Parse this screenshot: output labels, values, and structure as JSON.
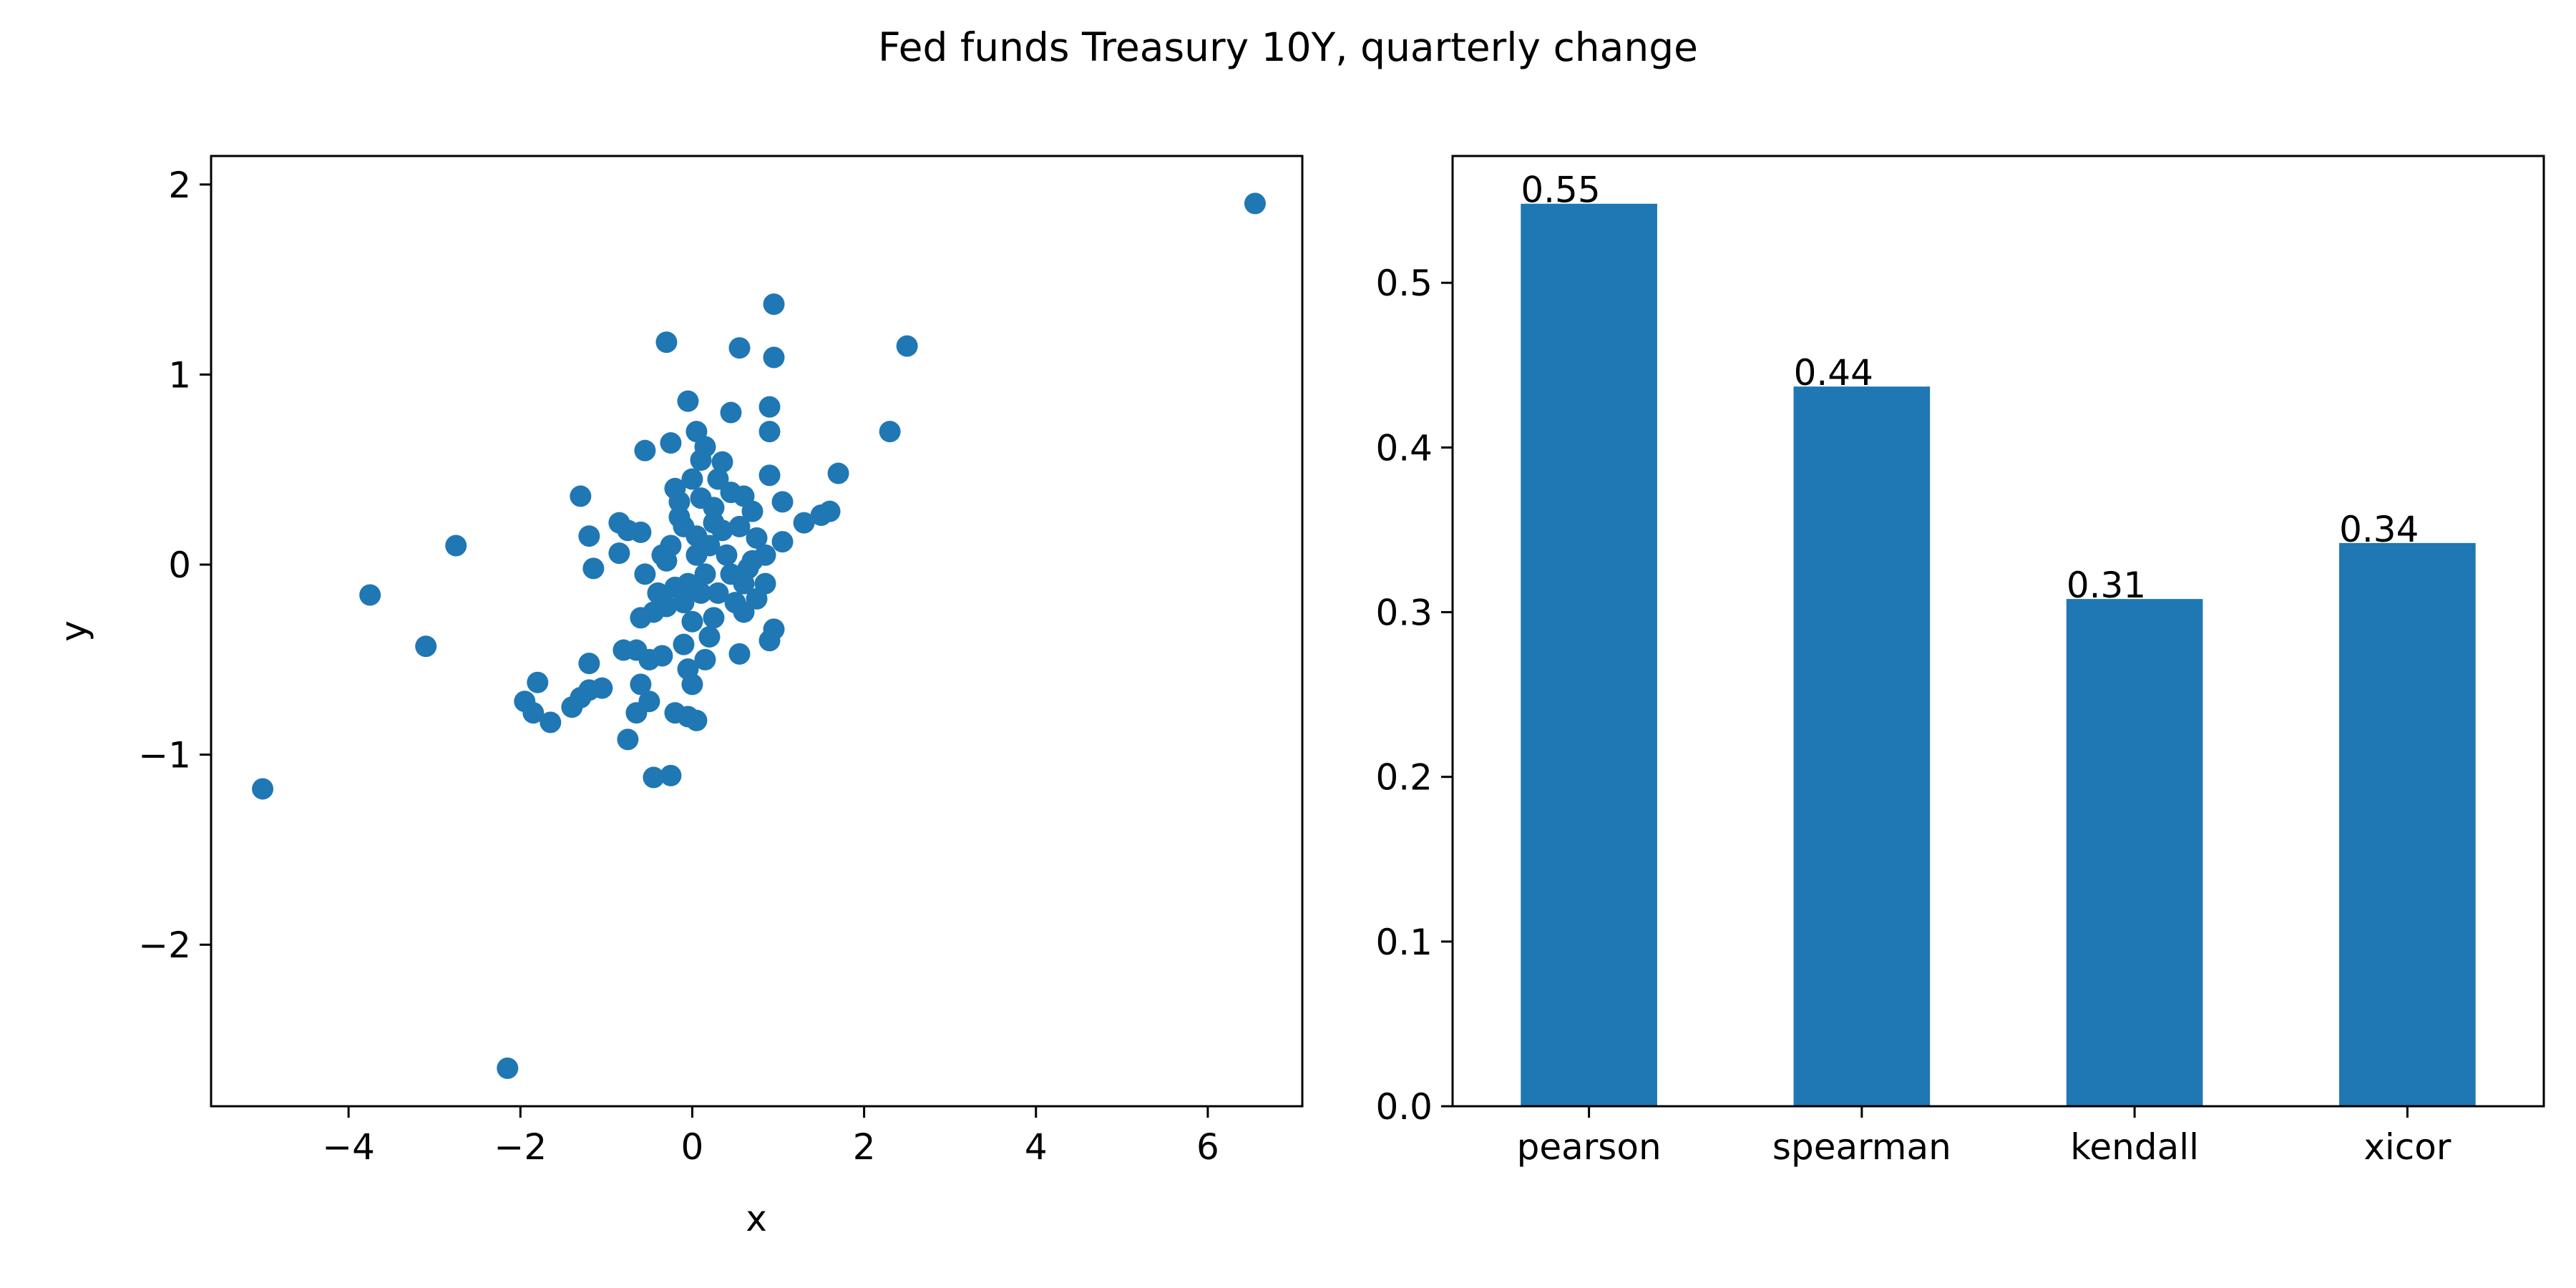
{
  "figure": {
    "title": "Fed funds Treasury 10Y, quarterly change"
  },
  "chart_data": [
    {
      "type": "scatter",
      "title": "",
      "xlabel": "x",
      "ylabel": "y",
      "xlim": [
        -5.6,
        7.1
      ],
      "ylim": [
        -2.85,
        2.15
      ],
      "xticks": [
        -4,
        -2,
        0,
        2,
        4,
        6
      ],
      "yticks": [
        -2,
        -1,
        0,
        1,
        2
      ],
      "grid": false,
      "color": "#1f77b4",
      "points": [
        [
          6.55,
          1.9
        ],
        [
          -5.0,
          -1.18
        ],
        [
          -2.15,
          -2.65
        ],
        [
          2.5,
          1.15
        ],
        [
          2.3,
          0.7
        ],
        [
          -3.75,
          -0.16
        ],
        [
          -3.1,
          -0.43
        ],
        [
          -2.75,
          0.1
        ],
        [
          -1.8,
          -0.62
        ],
        [
          -1.65,
          -0.83
        ],
        [
          -1.95,
          -0.72
        ],
        [
          -1.85,
          -0.78
        ],
        [
          -1.4,
          -0.75
        ],
        [
          -1.3,
          -0.7
        ],
        [
          -1.2,
          -0.66
        ],
        [
          -1.05,
          -0.65
        ],
        [
          -1.2,
          -0.52
        ],
        [
          -1.3,
          0.36
        ],
        [
          -1.2,
          0.15
        ],
        [
          -1.15,
          -0.02
        ],
        [
          -0.85,
          0.22
        ],
        [
          -0.75,
          0.18
        ],
        [
          -0.6,
          0.17
        ],
        [
          -0.85,
          0.06
        ],
        [
          -0.55,
          0.6
        ],
        [
          -0.3,
          1.17
        ],
        [
          0.55,
          1.14
        ],
        [
          0.95,
          1.37
        ],
        [
          0.95,
          1.09
        ],
        [
          -0.05,
          0.86
        ],
        [
          0.45,
          0.8
        ],
        [
          0.9,
          0.83
        ],
        [
          0.9,
          0.7
        ],
        [
          -0.25,
          0.64
        ],
        [
          0.05,
          0.7
        ],
        [
          0.15,
          0.62
        ],
        [
          0.35,
          0.54
        ],
        [
          0.9,
          0.47
        ],
        [
          1.7,
          0.48
        ],
        [
          1.6,
          0.28
        ],
        [
          1.5,
          0.26
        ],
        [
          1.3,
          0.22
        ],
        [
          1.05,
          0.33
        ],
        [
          1.05,
          0.12
        ],
        [
          0.75,
          0.14
        ],
        [
          0.7,
          0.02
        ],
        [
          0.85,
          -0.1
        ],
        [
          0.75,
          -0.18
        ],
        [
          0.6,
          -0.25
        ],
        [
          0.95,
          -0.34
        ],
        [
          0.9,
          -0.4
        ],
        [
          0.55,
          -0.47
        ],
        [
          0.0,
          0.45
        ],
        [
          0.1,
          0.35
        ],
        [
          -0.15,
          0.33
        ],
        [
          0.25,
          0.3
        ],
        [
          0.45,
          0.38
        ],
        [
          0.6,
          0.36
        ],
        [
          0.35,
          0.18
        ],
        [
          0.2,
          0.1
        ],
        [
          -0.1,
          0.2
        ],
        [
          -0.25,
          0.1
        ],
        [
          -0.3,
          0.02
        ],
        [
          0.05,
          0.05
        ],
        [
          0.15,
          -0.05
        ],
        [
          -0.05,
          -0.1
        ],
        [
          -0.2,
          -0.12
        ],
        [
          -0.4,
          -0.15
        ],
        [
          -0.55,
          -0.05
        ],
        [
          -0.6,
          -0.28
        ],
        [
          -0.45,
          -0.25
        ],
        [
          -0.3,
          -0.22
        ],
        [
          0.0,
          -0.3
        ],
        [
          0.25,
          -0.28
        ],
        [
          0.3,
          -0.15
        ],
        [
          0.45,
          -0.05
        ],
        [
          0.6,
          -0.1
        ],
        [
          -0.8,
          -0.45
        ],
        [
          -0.65,
          -0.45
        ],
        [
          -0.5,
          -0.5
        ],
        [
          -0.35,
          -0.48
        ],
        [
          -0.6,
          -0.63
        ],
        [
          -0.5,
          -0.72
        ],
        [
          -0.65,
          -0.78
        ],
        [
          -0.75,
          -0.92
        ],
        [
          -0.2,
          -0.78
        ],
        [
          -0.05,
          -0.8
        ],
        [
          0.05,
          -0.82
        ],
        [
          -0.45,
          -1.12
        ],
        [
          -0.25,
          -1.11
        ],
        [
          -0.05,
          -0.55
        ],
        [
          0.0,
          -0.63
        ],
        [
          0.15,
          -0.5
        ],
        [
          -0.1,
          -0.42
        ],
        [
          0.2,
          -0.38
        ],
        [
          0.1,
          0.55
        ],
        [
          -0.15,
          0.25
        ],
        [
          0.3,
          0.45
        ],
        [
          0.55,
          0.2
        ],
        [
          0.65,
          -0.02
        ],
        [
          -0.35,
          0.05
        ],
        [
          0.05,
          0.15
        ],
        [
          0.4,
          0.05
        ],
        [
          0.5,
          -0.2
        ],
        [
          -0.1,
          -0.2
        ],
        [
          0.1,
          -0.15
        ],
        [
          0.25,
          0.22
        ],
        [
          -0.2,
          0.4
        ],
        [
          0.7,
          0.28
        ],
        [
          0.85,
          0.05
        ]
      ]
    },
    {
      "type": "bar",
      "title": "",
      "xlabel": "",
      "ylabel": "",
      "categories": [
        "pearson",
        "spearman",
        "kendall",
        "xicor"
      ],
      "values": [
        0.548,
        0.437,
        0.308,
        0.342
      ],
      "data_labels": [
        "0.55",
        "0.44",
        "0.31",
        "0.34"
      ],
      "ylim": [
        0,
        0.577
      ],
      "yticks": [
        0.0,
        0.1,
        0.2,
        0.3,
        0.4,
        0.5
      ],
      "grid": false,
      "color": "#1f77b4"
    }
  ]
}
